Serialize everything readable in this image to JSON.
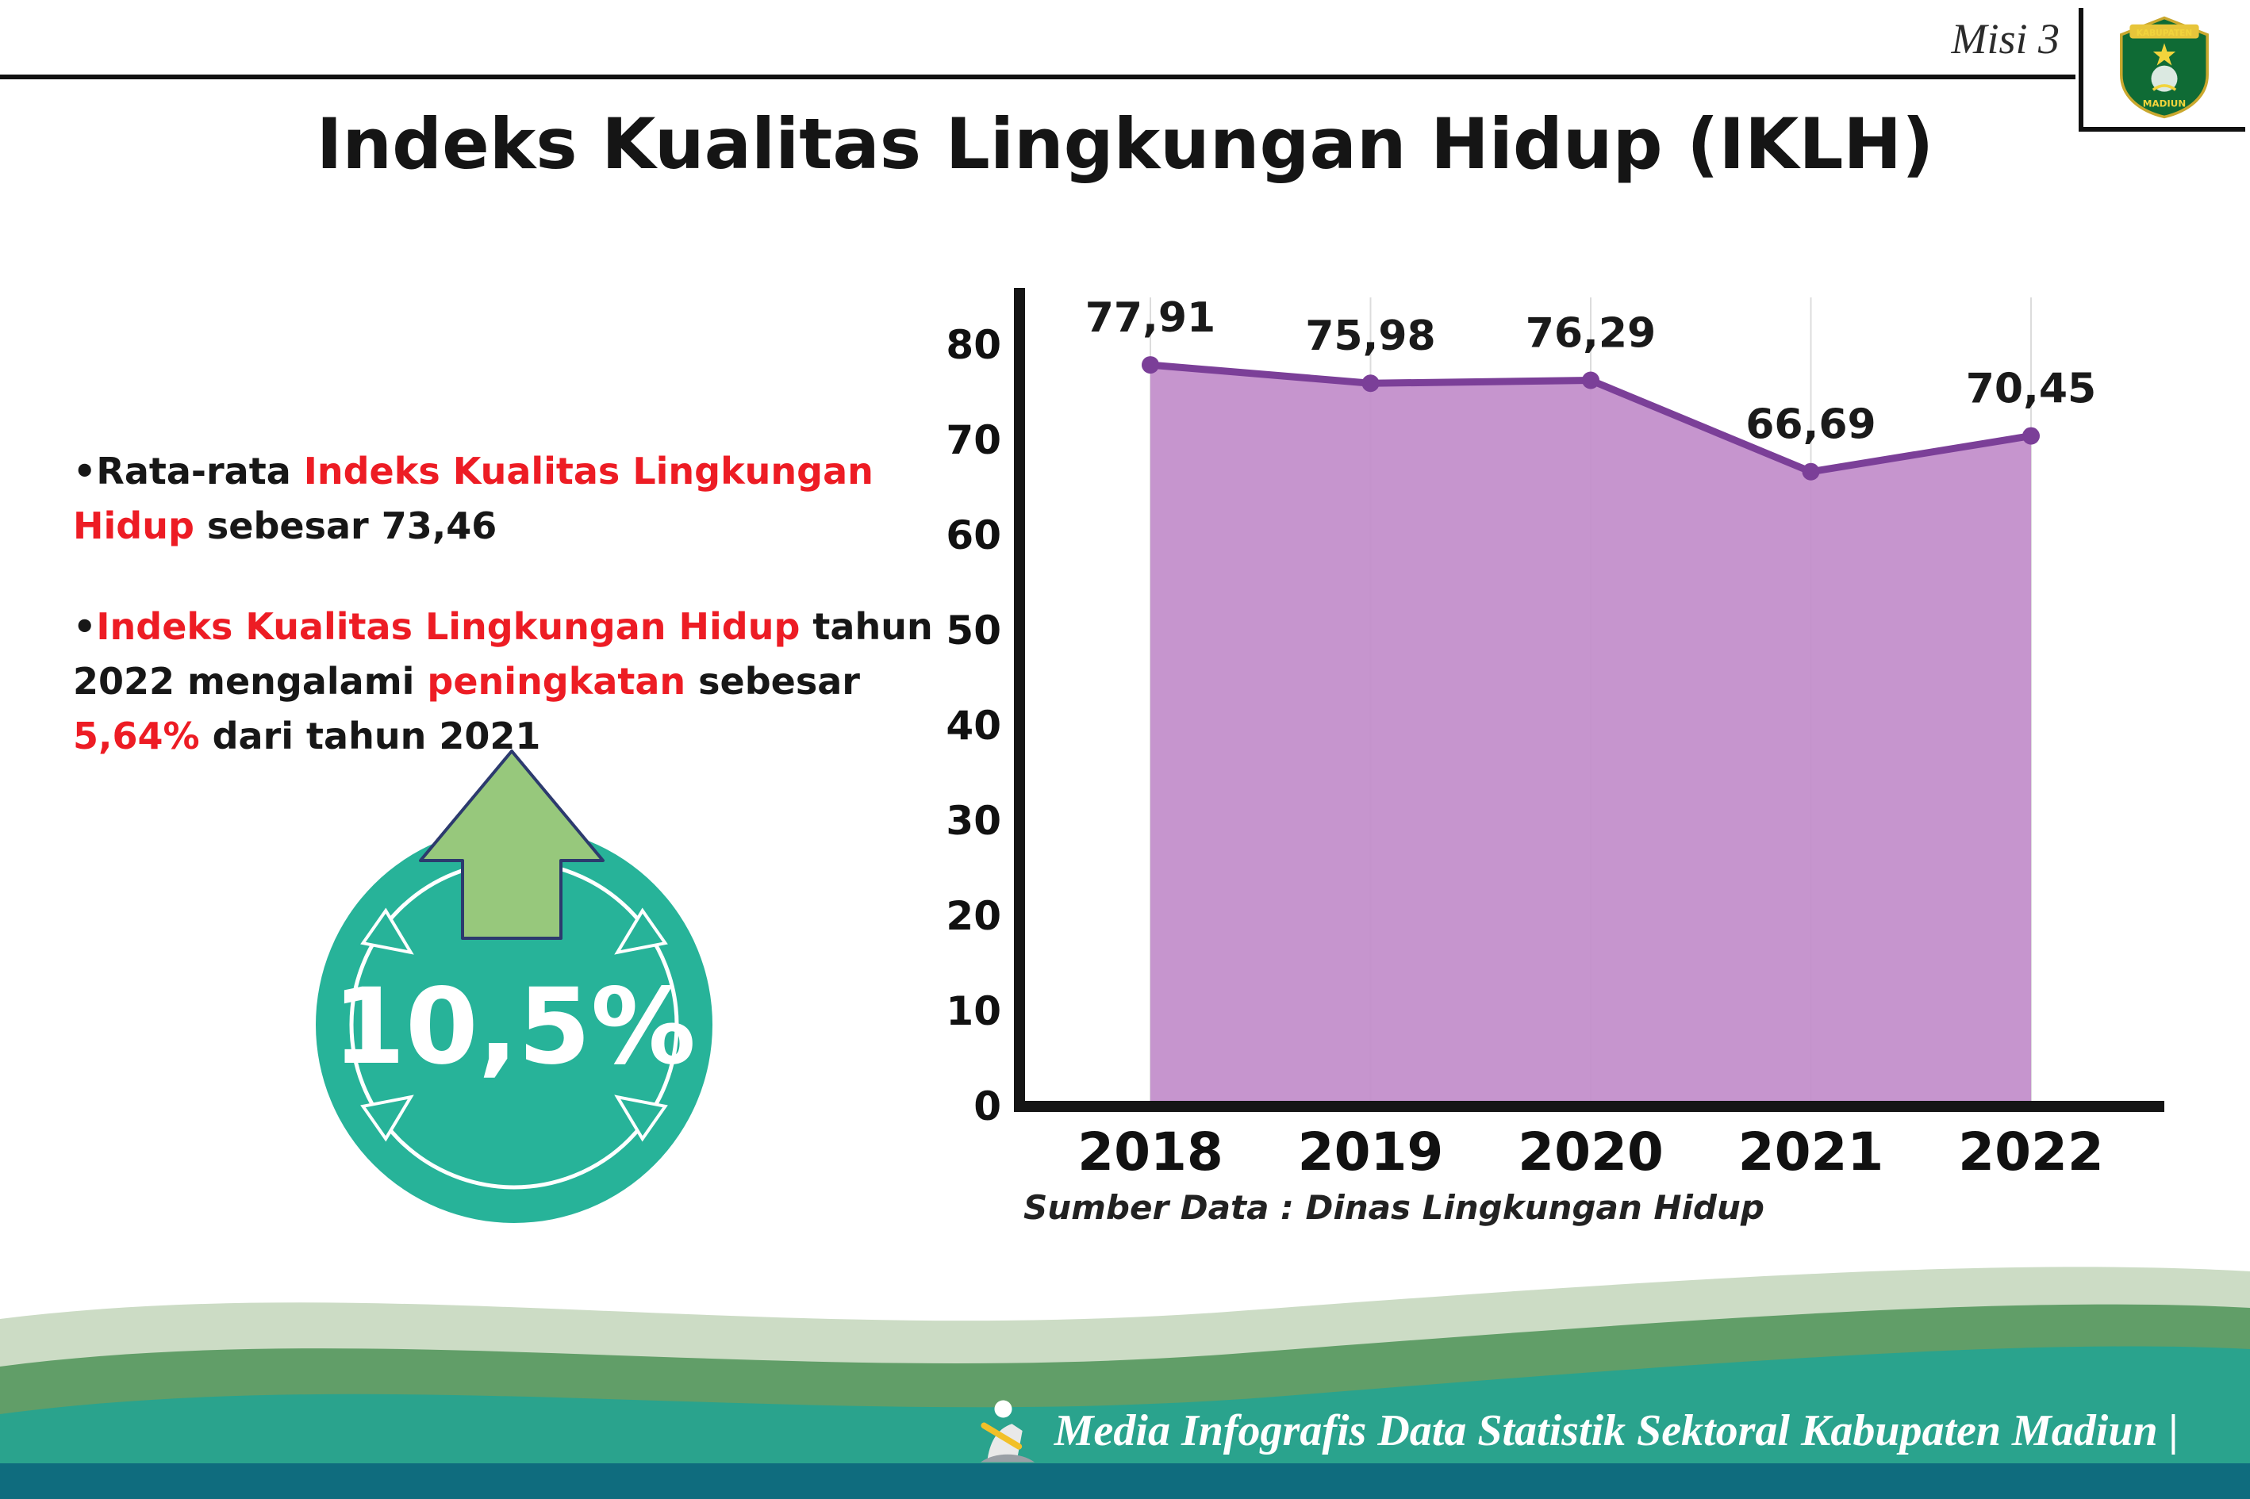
{
  "header": {
    "misi_label": "Misi 3",
    "title": "Indeks Kualitas Lingkungan Hidup (IKLH)",
    "logo": {
      "top_text": "KABUPATEN",
      "bottom_text": "MADIUN"
    }
  },
  "bullets": [
    {
      "segments": [
        {
          "text": "Rata-rata ",
          "highlight": false
        },
        {
          "text": "Indeks Kualitas Lingkungan Hidup",
          "highlight": true
        },
        {
          "text": " sebesar 73,46",
          "highlight": false
        }
      ]
    },
    {
      "segments": [
        {
          "text": "Indeks Kualitas Lingkungan Hidup",
          "highlight": true
        },
        {
          "text": " tahun 2022 mengalami ",
          "highlight": false
        },
        {
          "text": "peningkatan",
          "highlight": true
        },
        {
          "text": " sebesar ",
          "highlight": false
        },
        {
          "text": "5,64%",
          "highlight": true
        },
        {
          "text": " dari tahun 2021",
          "highlight": false
        }
      ]
    }
  ],
  "badge": {
    "value": "10,5%"
  },
  "chart_data": {
    "type": "area",
    "title": "Indeks Kualitas Lingkungan Hidup (IKLH)",
    "categories": [
      "2018",
      "2019",
      "2020",
      "2021",
      "2022"
    ],
    "values": [
      77.91,
      75.98,
      76.29,
      66.69,
      70.45
    ],
    "value_labels": [
      "77,91",
      "75,98",
      "76,29",
      "66,69",
      "70,45"
    ],
    "ylim": [
      0,
      80
    ],
    "ytick_step": 10,
    "grid": "vertical",
    "legend": "none",
    "line_color": "#7b3f98",
    "fill_color": "#c18cca",
    "source": "Sumber Data : Dinas Lingkungan Hidup"
  },
  "source_note": "Sumber Data : Dinas Lingkungan Hidup",
  "footer": {
    "text": "Media Infografis Data Statistik Sektoral Kabupaten Madiun |"
  },
  "colors": {
    "accent_red": "#ed1c24",
    "badge_teal": "#27b399",
    "arrow_green": "#97c87c",
    "line_purple": "#7b3f98",
    "area_purple": "#c18cca",
    "footer_teal": "#2aa38d",
    "footer_green": "#619e68",
    "footer_sage": "#ccdcc5",
    "footer_dark": "#0f6c7e"
  }
}
